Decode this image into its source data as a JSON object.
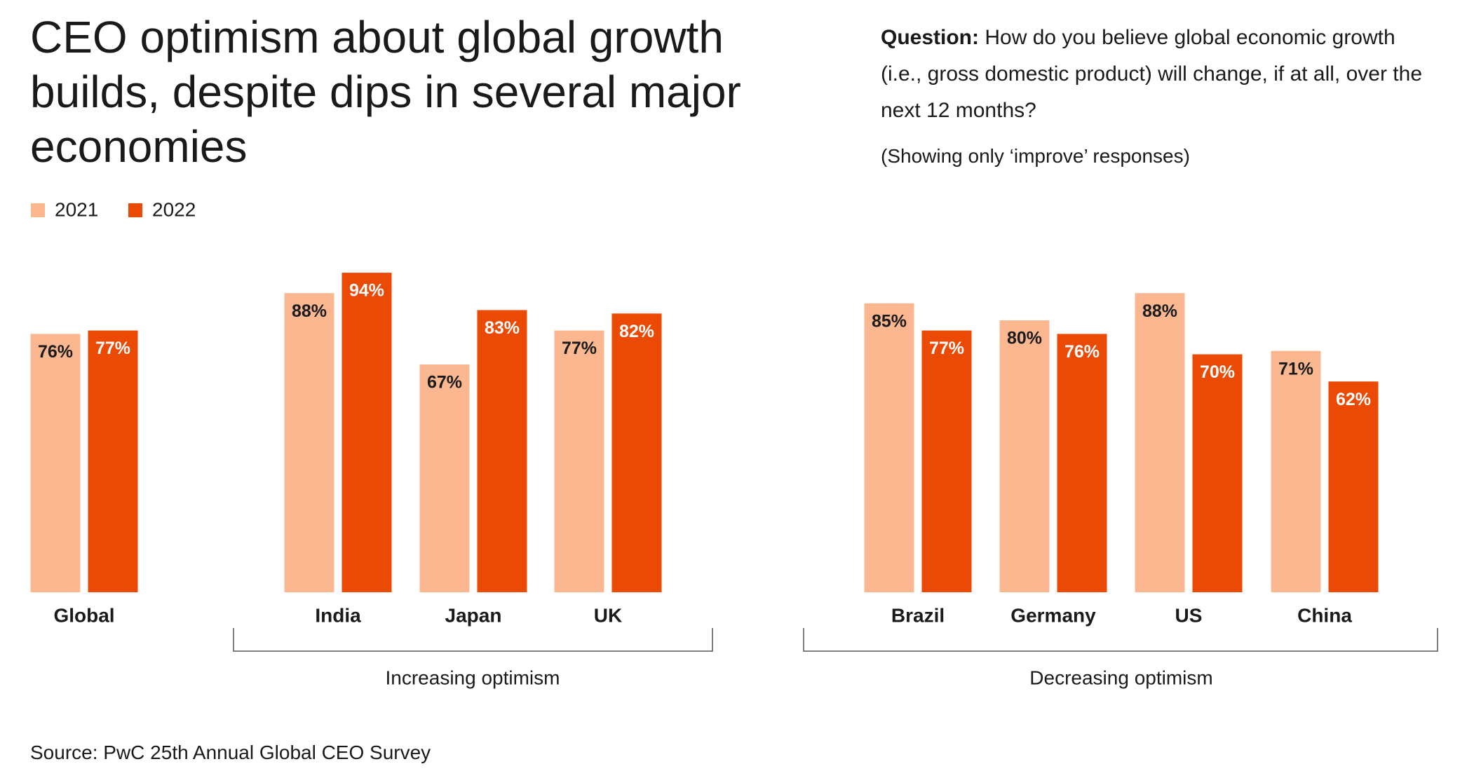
{
  "chart_data": {
    "type": "bar",
    "title": "CEO optimism about global growth builds, despite dips in several major economies",
    "question": {
      "label": "Question:",
      "text": "How do you believe global economic growth (i.e., gross domestic product) will change, if at all, over the next 12 months?"
    },
    "note": "(Showing only ‘improve’ responses)",
    "categories": [
      "Global",
      "India",
      "Japan",
      "UK",
      "Brazil",
      "Germany",
      "US",
      "China"
    ],
    "series": [
      {
        "name": "2021",
        "color": "#fbb890",
        "values": [
          76,
          88,
          67,
          77,
          85,
          80,
          88,
          71
        ],
        "value_labels": [
          "76%",
          "88%",
          "67%",
          "77%",
          "85%",
          "80%",
          "88%",
          "71%"
        ]
      },
      {
        "name": "2022",
        "color": "#eb4a05",
        "values": [
          77,
          94,
          83,
          82,
          77,
          76,
          70,
          62
        ],
        "value_labels": [
          "77%",
          "94%",
          "83%",
          "82%",
          "77%",
          "76%",
          "70%",
          "62%"
        ]
      }
    ],
    "ylim": [
      0,
      100
    ],
    "groups": [
      "Increasing optimism",
      "Decreasing optimism"
    ],
    "source": "Source: PwC 25th Annual Global CEO Survey"
  }
}
